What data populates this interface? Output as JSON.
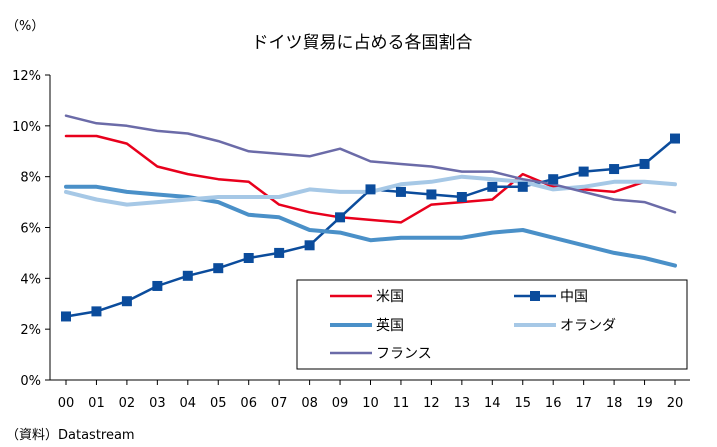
{
  "chart_data": {
    "type": "line",
    "title": "ドイツ貿易に占める各国割合",
    "unit_label": "（%）",
    "source": "（資料）Datastream",
    "x": [
      "00",
      "01",
      "02",
      "03",
      "04",
      "05",
      "06",
      "07",
      "08",
      "09",
      "10",
      "11",
      "12",
      "13",
      "14",
      "15",
      "16",
      "17",
      "18",
      "19",
      "20"
    ],
    "ylim": [
      0,
      12
    ],
    "yticks": [
      "0%",
      "2%",
      "4%",
      "6%",
      "8%",
      "10%",
      "12%"
    ],
    "grid": false,
    "legend_position": "bottom-right",
    "series": [
      {
        "name": "米国",
        "color": "#e8001c",
        "marker": "none",
        "values": [
          9.6,
          9.6,
          9.3,
          8.4,
          8.1,
          7.9,
          7.8,
          6.9,
          6.6,
          6.4,
          6.3,
          6.2,
          6.9,
          7.0,
          7.1,
          8.1,
          7.6,
          7.5,
          7.4,
          7.8,
          7.7
        ]
      },
      {
        "name": "中国",
        "color": "#0b4c9c",
        "marker": "square",
        "values": [
          2.5,
          2.7,
          3.1,
          3.7,
          4.1,
          4.4,
          4.8,
          5.0,
          5.3,
          6.4,
          7.5,
          7.4,
          7.3,
          7.2,
          7.6,
          7.6,
          7.9,
          8.2,
          8.3,
          8.5,
          9.5
        ]
      },
      {
        "name": "英国",
        "color": "#4a90c8",
        "marker": "none",
        "values": [
          7.6,
          7.6,
          7.4,
          7.3,
          7.2,
          7.0,
          6.5,
          6.4,
          5.9,
          5.8,
          5.5,
          5.6,
          5.6,
          5.6,
          5.8,
          5.9,
          5.6,
          5.3,
          5.0,
          4.8,
          4.5
        ]
      },
      {
        "name": "オランダ",
        "color": "#a6c8e6",
        "marker": "none",
        "values": [
          7.4,
          7.1,
          6.9,
          7.0,
          7.1,
          7.2,
          7.2,
          7.2,
          7.5,
          7.4,
          7.4,
          7.7,
          7.8,
          8.0,
          7.9,
          7.8,
          7.5,
          7.6,
          7.8,
          7.8,
          7.7
        ]
      },
      {
        "name": "フランス",
        "color": "#6b6ba8",
        "marker": "none",
        "values": [
          10.4,
          10.1,
          10.0,
          9.8,
          9.7,
          9.4,
          9.0,
          8.9,
          8.8,
          9.1,
          8.6,
          8.5,
          8.4,
          8.2,
          8.2,
          7.9,
          7.7,
          7.4,
          7.1,
          7.0,
          6.6
        ]
      }
    ]
  }
}
